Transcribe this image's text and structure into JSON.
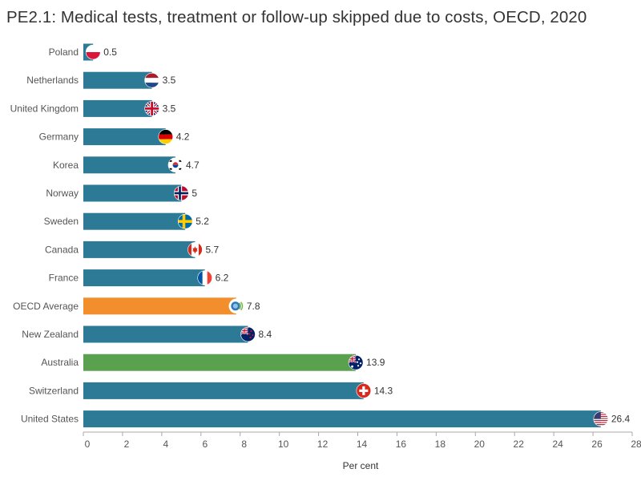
{
  "title": "PE2.1: Medical tests, treatment or follow-up skipped due to costs, OECD, 2020",
  "colors": {
    "default": "#2c7a96",
    "oecd_average": "#f28e2b",
    "highlight": "#59a14f",
    "axis": "#aaaaaa",
    "text": "#555555"
  },
  "chart_data": {
    "type": "bar",
    "orientation": "horizontal",
    "title": "PE2.1: Medical tests, treatment or follow-up skipped due to costs, OECD, 2020",
    "xlabel": "Per cent",
    "ylabel": "",
    "xlim": [
      0,
      28
    ],
    "xticks": [
      0,
      2,
      4,
      6,
      8,
      10,
      12,
      14,
      16,
      18,
      20,
      22,
      24,
      26,
      28
    ],
    "grid": false,
    "categories": [
      "Poland",
      "Netherlands",
      "United Kingdom",
      "Germany",
      "Korea",
      "Norway",
      "Sweden",
      "Canada",
      "France",
      "OECD Average",
      "New Zealand",
      "Australia",
      "Switzerland",
      "United States"
    ],
    "values": [
      0.5,
      3.5,
      3.5,
      4.2,
      4.7,
      5,
      5.2,
      5.7,
      6.2,
      7.8,
      8.4,
      13.9,
      14.3,
      26.4
    ],
    "value_labels": [
      "0.5",
      "3.5",
      "3.5",
      "4.2",
      "4.7",
      "5",
      "5.2",
      "5.7",
      "6.2",
      "7.8",
      "8.4",
      "13.9",
      "14.3",
      "26.4"
    ],
    "bar_color_keys": [
      "default",
      "default",
      "default",
      "default",
      "default",
      "default",
      "default",
      "default",
      "default",
      "oecd_average",
      "default",
      "highlight",
      "default",
      "default"
    ],
    "flag_icons": [
      "flag-poland-icon",
      "flag-netherlands-icon",
      "flag-uk-icon",
      "flag-germany-icon",
      "flag-korea-icon",
      "flag-norway-icon",
      "flag-sweden-icon",
      "flag-canada-icon",
      "flag-france-icon",
      "flag-oecd-icon",
      "flag-new-zealand-icon",
      "flag-australia-icon",
      "flag-switzerland-icon",
      "flag-usa-icon"
    ]
  }
}
